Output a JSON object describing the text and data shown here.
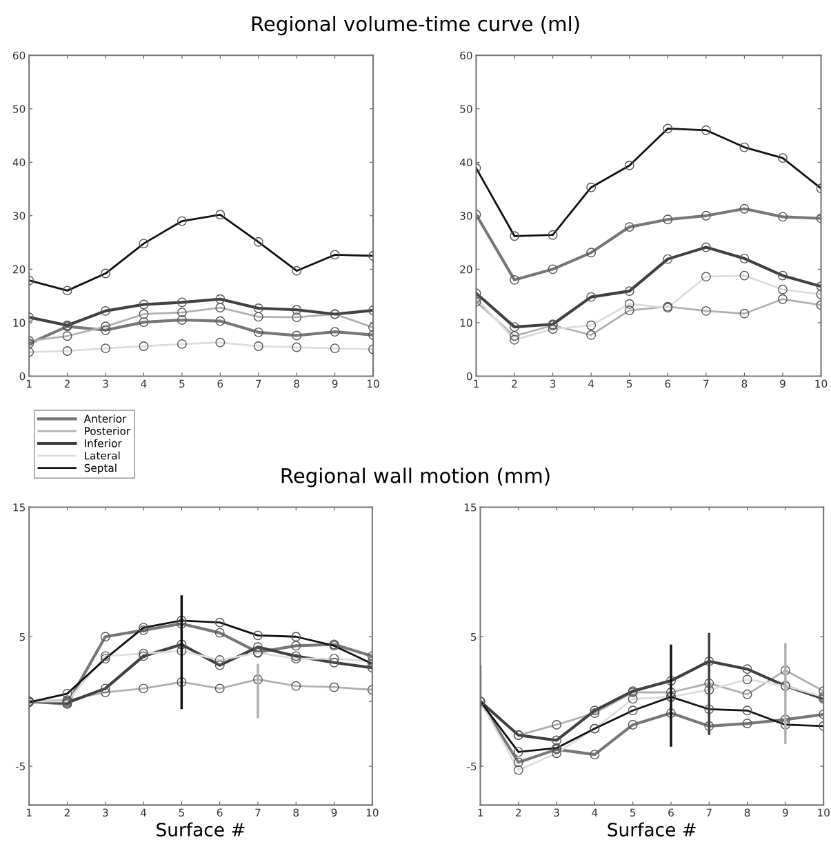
{
  "chart_data": [
    {
      "type": "line",
      "title": "Regional volume-time curve (ml)",
      "x": [
        1,
        2,
        3,
        4,
        5,
        6,
        7,
        8,
        9,
        10
      ],
      "xlim": [
        1,
        10
      ],
      "xticks": [
        1,
        2,
        3,
        4,
        5,
        6,
        7,
        8,
        9,
        10
      ],
      "ylim": [
        0,
        60
      ],
      "yticks": [
        0,
        10,
        20,
        30,
        40,
        50,
        60
      ],
      "marker": "circle",
      "grid": false,
      "legend": "bottom left",
      "series": [
        {
          "name": "Anterior",
          "color": "#777777",
          "values": [
            6.1,
            9.3,
            8.6,
            10.1,
            10.5,
            10.3,
            8.2,
            7.6,
            8.3,
            7.7
          ]
        },
        {
          "name": "Posterior",
          "color": "#b0b0b0",
          "values": [
            6.6,
            7.5,
            9.3,
            11.6,
            11.9,
            12.8,
            11.1,
            11.0,
            11.6,
            9.1
          ]
        },
        {
          "name": "Inferior",
          "color": "#404040",
          "values": [
            11.0,
            9.5,
            12.2,
            13.4,
            13.8,
            14.4,
            12.7,
            12.4,
            11.6,
            12.3
          ]
        },
        {
          "name": "Lateral",
          "color": "#dcdcdc",
          "values": [
            4.5,
            4.7,
            5.2,
            5.6,
            6.0,
            6.3,
            5.6,
            5.4,
            5.2,
            5.0
          ]
        },
        {
          "name": "Septal",
          "color": "#111111",
          "values": [
            17.9,
            16.0,
            19.2,
            24.8,
            29.0,
            30.2,
            25.1,
            19.7,
            22.7,
            22.5
          ]
        }
      ]
    },
    {
      "type": "line",
      "x": [
        1,
        2,
        3,
        4,
        5,
        6,
        7,
        8,
        9,
        10
      ],
      "xlim": [
        1,
        10
      ],
      "xticks": [
        1,
        2,
        3,
        4,
        5,
        6,
        7,
        8,
        9,
        10
      ],
      "ylim": [
        0,
        60
      ],
      "yticks": [
        0,
        10,
        20,
        30,
        40,
        50,
        60
      ],
      "marker": "circle",
      "grid": false,
      "series": [
        {
          "color": "#777777",
          "values": [
            30.2,
            18.0,
            20.0,
            23.1,
            27.9,
            29.3,
            30.0,
            31.3,
            29.8,
            29.5
          ]
        },
        {
          "color": "#b0b0b0",
          "values": [
            13.9,
            7.5,
            9.5,
            7.7,
            12.3,
            13.0,
            12.2,
            11.7,
            14.4,
            13.3
          ]
        },
        {
          "color": "#404040",
          "values": [
            15.5,
            9.2,
            9.7,
            14.8,
            15.9,
            21.9,
            24.1,
            22.0,
            18.8,
            16.8
          ]
        },
        {
          "color": "#dcdcdc",
          "values": [
            14.6,
            6.8,
            8.8,
            9.5,
            13.5,
            12.8,
            18.6,
            18.8,
            16.2,
            15.3
          ]
        },
        {
          "color": "#111111",
          "values": [
            38.9,
            26.2,
            26.4,
            35.3,
            39.4,
            46.3,
            46.0,
            42.8,
            40.8,
            35.1
          ]
        }
      ]
    },
    {
      "type": "line",
      "title": "Regional wall motion (mm)",
      "xlabel": "Surface #",
      "x": [
        1,
        2,
        3,
        4,
        5,
        6,
        7,
        8,
        9,
        10
      ],
      "xlim": [
        1,
        10
      ],
      "xticks": [
        1,
        2,
        3,
        4,
        5,
        6,
        7,
        8,
        9,
        10
      ],
      "ylim": [
        -8,
        15
      ],
      "yticks": [
        15,
        5,
        {
          "value": 0,
          "label": null
        },
        -5
      ],
      "marker": "circle",
      "grid": false,
      "series": [
        {
          "color": "#777777",
          "values": [
            0,
            -0.2,
            5.0,
            5.5,
            6.0,
            5.3,
            3.8,
            4.3,
            4.4,
            3.5
          ]
        },
        {
          "color": "#b0b0b0",
          "values": [
            0,
            0.1,
            0.7,
            1.0,
            1.5,
            1.0,
            1.7,
            1.2,
            1.1,
            0.9
          ],
          "errors": [
            null,
            null,
            null,
            null,
            null,
            null,
            [
              -1.2,
              2.8
            ],
            null,
            null,
            null
          ]
        },
        {
          "color": "#404040",
          "values": [
            0,
            -0.1,
            1.0,
            3.5,
            4.4,
            2.8,
            4.2,
            3.5,
            3.0,
            2.6
          ]
        },
        {
          "color": "#dcdcdc",
          "values": [
            0,
            0,
            3.5,
            3.7,
            3.9,
            3.2,
            3.75,
            3.3,
            3.3,
            3.1
          ]
        },
        {
          "color": "#111111",
          "values": [
            -0.07,
            0.6,
            3.3,
            5.7,
            6.25,
            6.1,
            5.1,
            5.0,
            4.3,
            2.9
          ],
          "errors": [
            null,
            null,
            null,
            null,
            [
              -0.5,
              8.1
            ],
            null,
            null,
            null,
            null,
            null
          ]
        }
      ]
    },
    {
      "type": "line",
      "xlabel": "Surface #",
      "x": [
        1,
        2,
        3,
        4,
        5,
        6,
        7,
        8,
        9,
        10
      ],
      "xlim": [
        1,
        10
      ],
      "xticks": [
        1,
        2,
        3,
        4,
        5,
        6,
        7,
        8,
        9,
        10
      ],
      "ylim": [
        -8,
        15
      ],
      "yticks": [
        15,
        5,
        {
          "value": 0,
          "label": null
        },
        -5
      ],
      "marker": "circle",
      "grid": false,
      "series": [
        {
          "color": "#777777",
          "values": [
            0,
            -4.7,
            -3.7,
            -4.1,
            -1.8,
            -0.9,
            -1.9,
            -1.7,
            -1.4,
            -1.0
          ],
          "errors": [
            [
              -5.0,
              2.7
            ],
            null,
            null,
            null,
            null,
            null,
            null,
            null,
            null,
            null
          ]
        },
        {
          "color": "#b0b0b0",
          "values": [
            0,
            -2.6,
            -1.8,
            -0.9,
            0.7,
            0.7,
            1.4,
            0.55,
            2.4,
            0.8
          ],
          "errors": [
            null,
            null,
            null,
            null,
            null,
            null,
            null,
            null,
            [
              -3.2,
              4.4
            ],
            null
          ]
        },
        {
          "color": "#404040",
          "values": [
            0,
            -2.6,
            -3.0,
            -0.7,
            0.8,
            1.6,
            3.1,
            2.5,
            1.2,
            0.2
          ],
          "errors": [
            null,
            null,
            null,
            null,
            null,
            null,
            [
              -2.5,
              5.2
            ],
            null,
            null,
            null
          ]
        },
        {
          "color": "#dcdcdc",
          "values": [
            0,
            -5.3,
            -4.0,
            -2.1,
            0.2,
            0.35,
            0.9,
            1.7,
            1.2,
            0.35
          ]
        },
        {
          "color": "#111111",
          "values": [
            0,
            -3.9,
            -3.6,
            -2.1,
            -0.7,
            0.35,
            -0.6,
            -0.7,
            -1.8,
            -1.9
          ],
          "errors": [
            null,
            null,
            null,
            null,
            null,
            [
              -3.4,
              4.3
            ],
            null,
            null,
            null,
            null
          ]
        }
      ]
    }
  ]
}
